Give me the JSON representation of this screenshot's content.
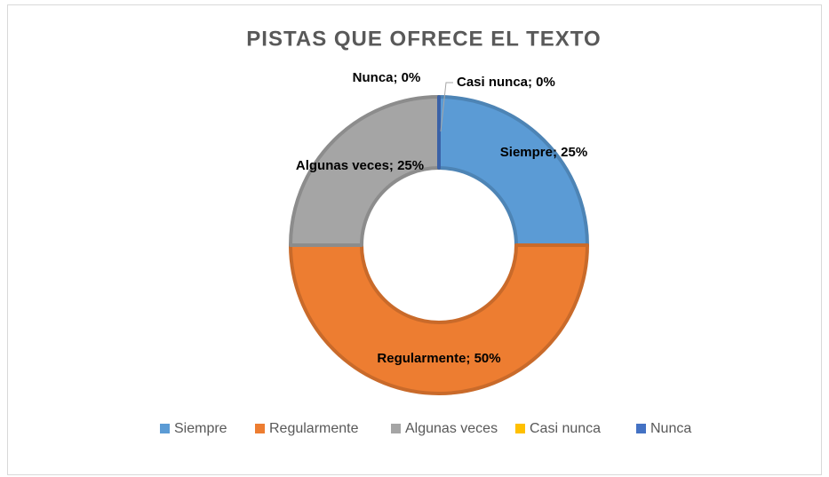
{
  "chart_data": {
    "type": "donut",
    "title": "PISTAS QUE OFRECE EL TEXTO",
    "categories": [
      "Siempre",
      "Regularmente",
      "Algunas veces",
      "Casi nunca",
      "Nunca"
    ],
    "values": [
      25,
      50,
      25,
      0,
      0
    ],
    "value_labels": [
      "Siempre; 25%",
      "Regularmente; 50%",
      "Algunas veces; 25%",
      "Casi nunca; 0%",
      "Nunca; 0%"
    ],
    "colors": [
      "#5b9bd5",
      "#ed7d31",
      "#a5a5a5",
      "#ffc000",
      "#4472c4"
    ],
    "legend": "bottom"
  }
}
